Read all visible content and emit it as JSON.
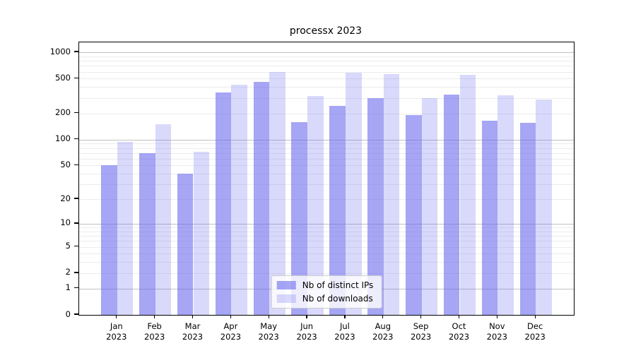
{
  "page": {
    "background": "#ffffff"
  },
  "chart_data": {
    "type": "bar",
    "title": "processx 2023",
    "categories": [
      "Jan",
      "Feb",
      "Mar",
      "Apr",
      "May",
      "Jun",
      "Jul",
      "Aug",
      "Sep",
      "Oct",
      "Nov",
      "Dec"
    ],
    "category_year": "2023",
    "series": [
      {
        "name": "Nb of distinct IPs",
        "color": "rgba(102,102,238,0.58)",
        "values": [
          50,
          70,
          40,
          350,
          460,
          160,
          245,
          300,
          190,
          330,
          165,
          155
        ]
      },
      {
        "name": "Nb of downloads",
        "color": "rgba(102,102,238,0.25)",
        "values": [
          93,
          150,
          72,
          430,
          600,
          315,
          590,
          560,
          300,
          550,
          325,
          290
        ]
      }
    ],
    "y_axis": {
      "scale": "log1p",
      "min": 0,
      "max": 1300,
      "ticks": [
        0,
        1,
        2,
        5,
        10,
        20,
        50,
        100,
        200,
        500,
        1000
      ],
      "major_gridlines": [
        1,
        10,
        100,
        1000
      ]
    },
    "x_axis": {
      "tick_label_format": "month over year, two lines"
    },
    "legend": {
      "position": "lower center"
    },
    "grid": true,
    "colors": {
      "bar_base": "#6666ee",
      "grid_major": "#c0c0c0",
      "grid_minor": "#ececec",
      "axis": "#000000",
      "legend_border": "#cccccc"
    }
  }
}
